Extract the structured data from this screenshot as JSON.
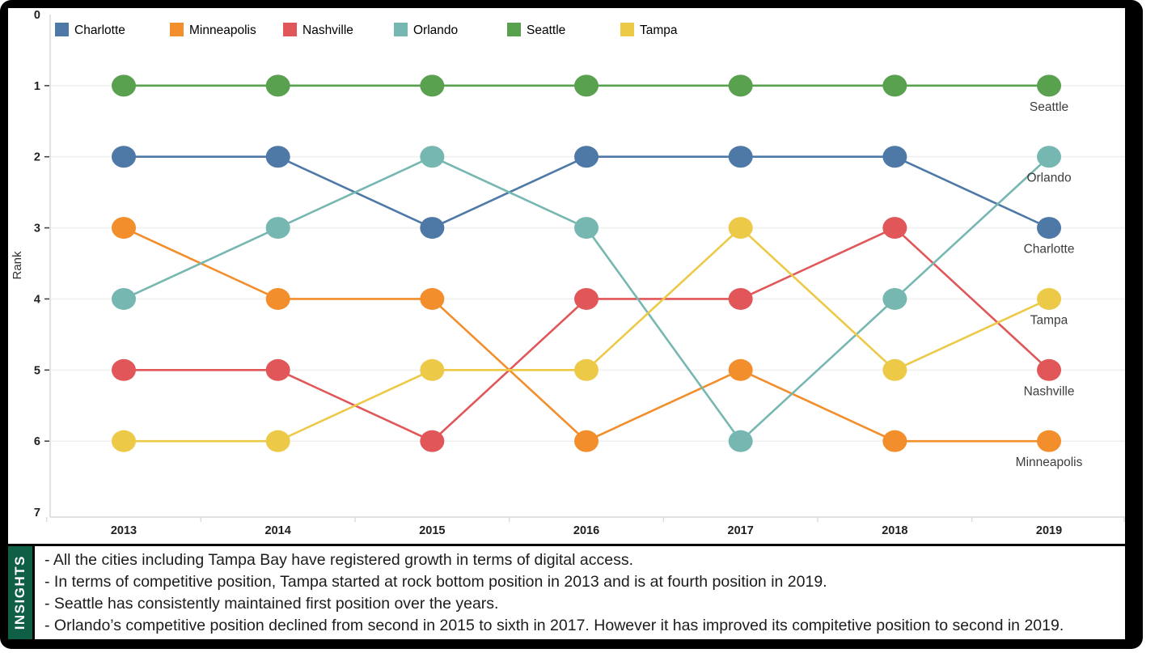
{
  "chart_data": {
    "type": "line",
    "subtype": "bump-rank-chart",
    "categories": [
      "2013",
      "2014",
      "2015",
      "2016",
      "2017",
      "2018",
      "2019"
    ],
    "series": [
      {
        "name": "Charlotte",
        "color": "#4e79a7",
        "values": [
          2,
          2,
          3,
          2,
          2,
          2,
          3
        ]
      },
      {
        "name": "Minneapolis",
        "color": "#f28e2b",
        "values": [
          3,
          4,
          4,
          6,
          5,
          6,
          6
        ]
      },
      {
        "name": "Nashville",
        "color": "#e15759",
        "values": [
          5,
          5,
          6,
          4,
          4,
          3,
          5
        ]
      },
      {
        "name": "Orlando",
        "color": "#76b7b2",
        "values": [
          4,
          3,
          2,
          3,
          6,
          4,
          2
        ]
      },
      {
        "name": "Seattle",
        "color": "#59a14f",
        "values": [
          1,
          1,
          1,
          1,
          1,
          1,
          1
        ]
      },
      {
        "name": "Tampa",
        "color": "#edc948",
        "values": [
          6,
          6,
          5,
          5,
          3,
          5,
          4
        ]
      }
    ],
    "title": "",
    "xlabel": "",
    "ylabel": "Rank",
    "y_ticks": [
      0,
      1,
      2,
      3,
      4,
      5,
      6,
      7
    ],
    "ylim": [
      0,
      7
    ],
    "y_inverted": true,
    "grid": "horizontal",
    "legend_position": "top",
    "end_labels_shown": true
  },
  "insights": {
    "label": "INSIGHTS",
    "accent_color": "#0f5e46",
    "lines": [
      "- All the cities including Tampa Bay have registered growth in terms of digital access.",
      "- In terms of competitive position, Tampa started at rock bottom position in 2013 and is at fourth position in 2019.",
      "- Seattle has consistently maintained first position over the years.",
      "- Orlando’s competitive position declined from second in 2015 to sixth in 2017. However it has improved its compitetive position to second in 2019."
    ]
  }
}
